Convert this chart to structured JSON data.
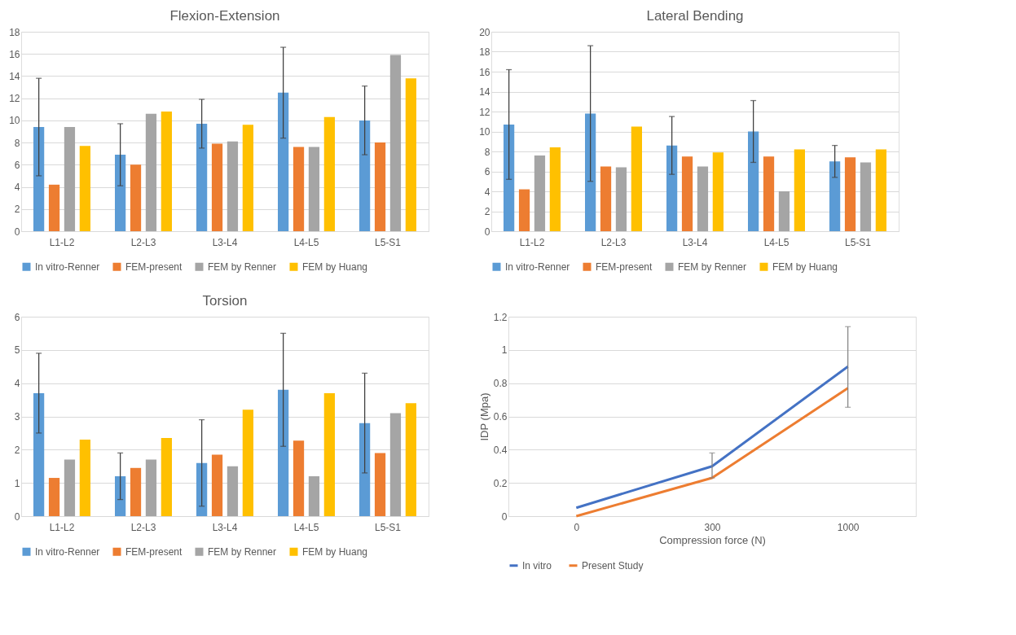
{
  "chart_data": [
    {
      "type": "bar",
      "title": "Flexion-Extension",
      "categories": [
        "L1-L2",
        "L2-L3",
        "L3-L4",
        "L4-L5",
        "L5-S1"
      ],
      "ylim": [
        0,
        18
      ],
      "yticks": [
        0,
        2,
        4,
        6,
        8,
        10,
        12,
        14,
        16,
        18
      ],
      "grid": "y",
      "legend": "bottom",
      "series": [
        {
          "name": "In vitro-Renner",
          "color": "#5b9bd5",
          "values": [
            9.4,
            6.9,
            9.7,
            12.5,
            10.0
          ],
          "errors": [
            [
              5.0,
              13.8
            ],
            [
              4.1,
              9.7
            ],
            [
              7.5,
              11.9
            ],
            [
              8.4,
              16.6
            ],
            [
              6.9,
              13.1
            ]
          ]
        },
        {
          "name": "FEM-present",
          "color": "#ed7d31",
          "values": [
            4.2,
            6.0,
            7.9,
            7.6,
            8.0
          ]
        },
        {
          "name": "FEM by Renner",
          "color": "#a5a5a5",
          "values": [
            9.4,
            10.6,
            8.1,
            7.6,
            15.9
          ]
        },
        {
          "name": "FEM by Huang",
          "color": "#ffc000",
          "values": [
            7.7,
            10.8,
            9.6,
            10.3,
            13.8
          ]
        }
      ]
    },
    {
      "type": "bar",
      "title": "Lateral Bending",
      "categories": [
        "L1-L2",
        "L2-L3",
        "L3-L4",
        "L4-L5",
        "L5-S1"
      ],
      "ylim": [
        0,
        20
      ],
      "yticks": [
        0,
        2,
        4,
        6,
        8,
        10,
        12,
        14,
        16,
        18,
        20
      ],
      "grid": "y",
      "legend": "bottom",
      "series": [
        {
          "name": "In vitro-Renner",
          "color": "#5b9bd5",
          "values": [
            10.7,
            11.8,
            8.6,
            10.0,
            7.0
          ],
          "errors": [
            [
              5.2,
              16.2
            ],
            [
              5.0,
              18.6
            ],
            [
              5.7,
              11.5
            ],
            [
              6.9,
              13.1
            ],
            [
              5.4,
              8.6
            ]
          ]
        },
        {
          "name": "FEM-present",
          "color": "#ed7d31",
          "values": [
            4.2,
            6.5,
            7.5,
            7.5,
            7.4
          ]
        },
        {
          "name": "FEM by Renner",
          "color": "#a5a5a5",
          "values": [
            7.6,
            6.4,
            6.5,
            4.0,
            6.9
          ]
        },
        {
          "name": "FEM by Huang",
          "color": "#ffc000",
          "values": [
            8.4,
            10.5,
            7.9,
            8.2,
            8.2
          ]
        }
      ]
    },
    {
      "type": "bar",
      "title": "Torsion",
      "categories": [
        "L1-L2",
        "L2-L3",
        "L3-L4",
        "L4-L5",
        "L5-S1"
      ],
      "ylim": [
        0,
        6
      ],
      "yticks": [
        0,
        1,
        2,
        3,
        4,
        5,
        6
      ],
      "grid": "y",
      "legend": "bottom",
      "series": [
        {
          "name": "In vitro-Renner",
          "color": "#5b9bd5",
          "values": [
            3.7,
            1.2,
            1.6,
            3.8,
            2.8
          ],
          "errors": [
            [
              2.5,
              4.9
            ],
            [
              0.5,
              1.9
            ],
            [
              0.3,
              2.9
            ],
            [
              2.1,
              5.5
            ],
            [
              1.3,
              4.3
            ]
          ]
        },
        {
          "name": "FEM-present",
          "color": "#ed7d31",
          "values": [
            1.15,
            1.45,
            1.85,
            2.27,
            1.9
          ]
        },
        {
          "name": "FEM by Renner",
          "color": "#a5a5a5",
          "values": [
            1.7,
            1.7,
            1.5,
            1.2,
            3.1
          ]
        },
        {
          "name": "FEM by Huang",
          "color": "#ffc000",
          "values": [
            2.3,
            2.35,
            3.2,
            3.7,
            3.4
          ]
        }
      ]
    },
    {
      "type": "line",
      "xlabel": "Compression force (N)",
      "ylabel": "IDP (Mpa)",
      "categories": [
        "0",
        "300",
        "1000"
      ],
      "ylim": [
        0,
        1.2
      ],
      "yticks": [
        0,
        0.2,
        0.4,
        0.6,
        0.8,
        1,
        1.2
      ],
      "grid": "y",
      "legend": "bottom",
      "marker": "none",
      "line_style": "solid",
      "series": [
        {
          "name": "In vitro",
          "color": "#4472c4",
          "values": [
            0.05,
            0.3,
            0.9
          ],
          "errors": [
            null,
            [
              0.23,
              0.38
            ],
            [
              0.655,
              1.14
            ]
          ]
        },
        {
          "name": "Present Study",
          "color": "#ed7d31",
          "values": [
            0.0,
            0.23,
            0.77
          ]
        }
      ]
    }
  ]
}
